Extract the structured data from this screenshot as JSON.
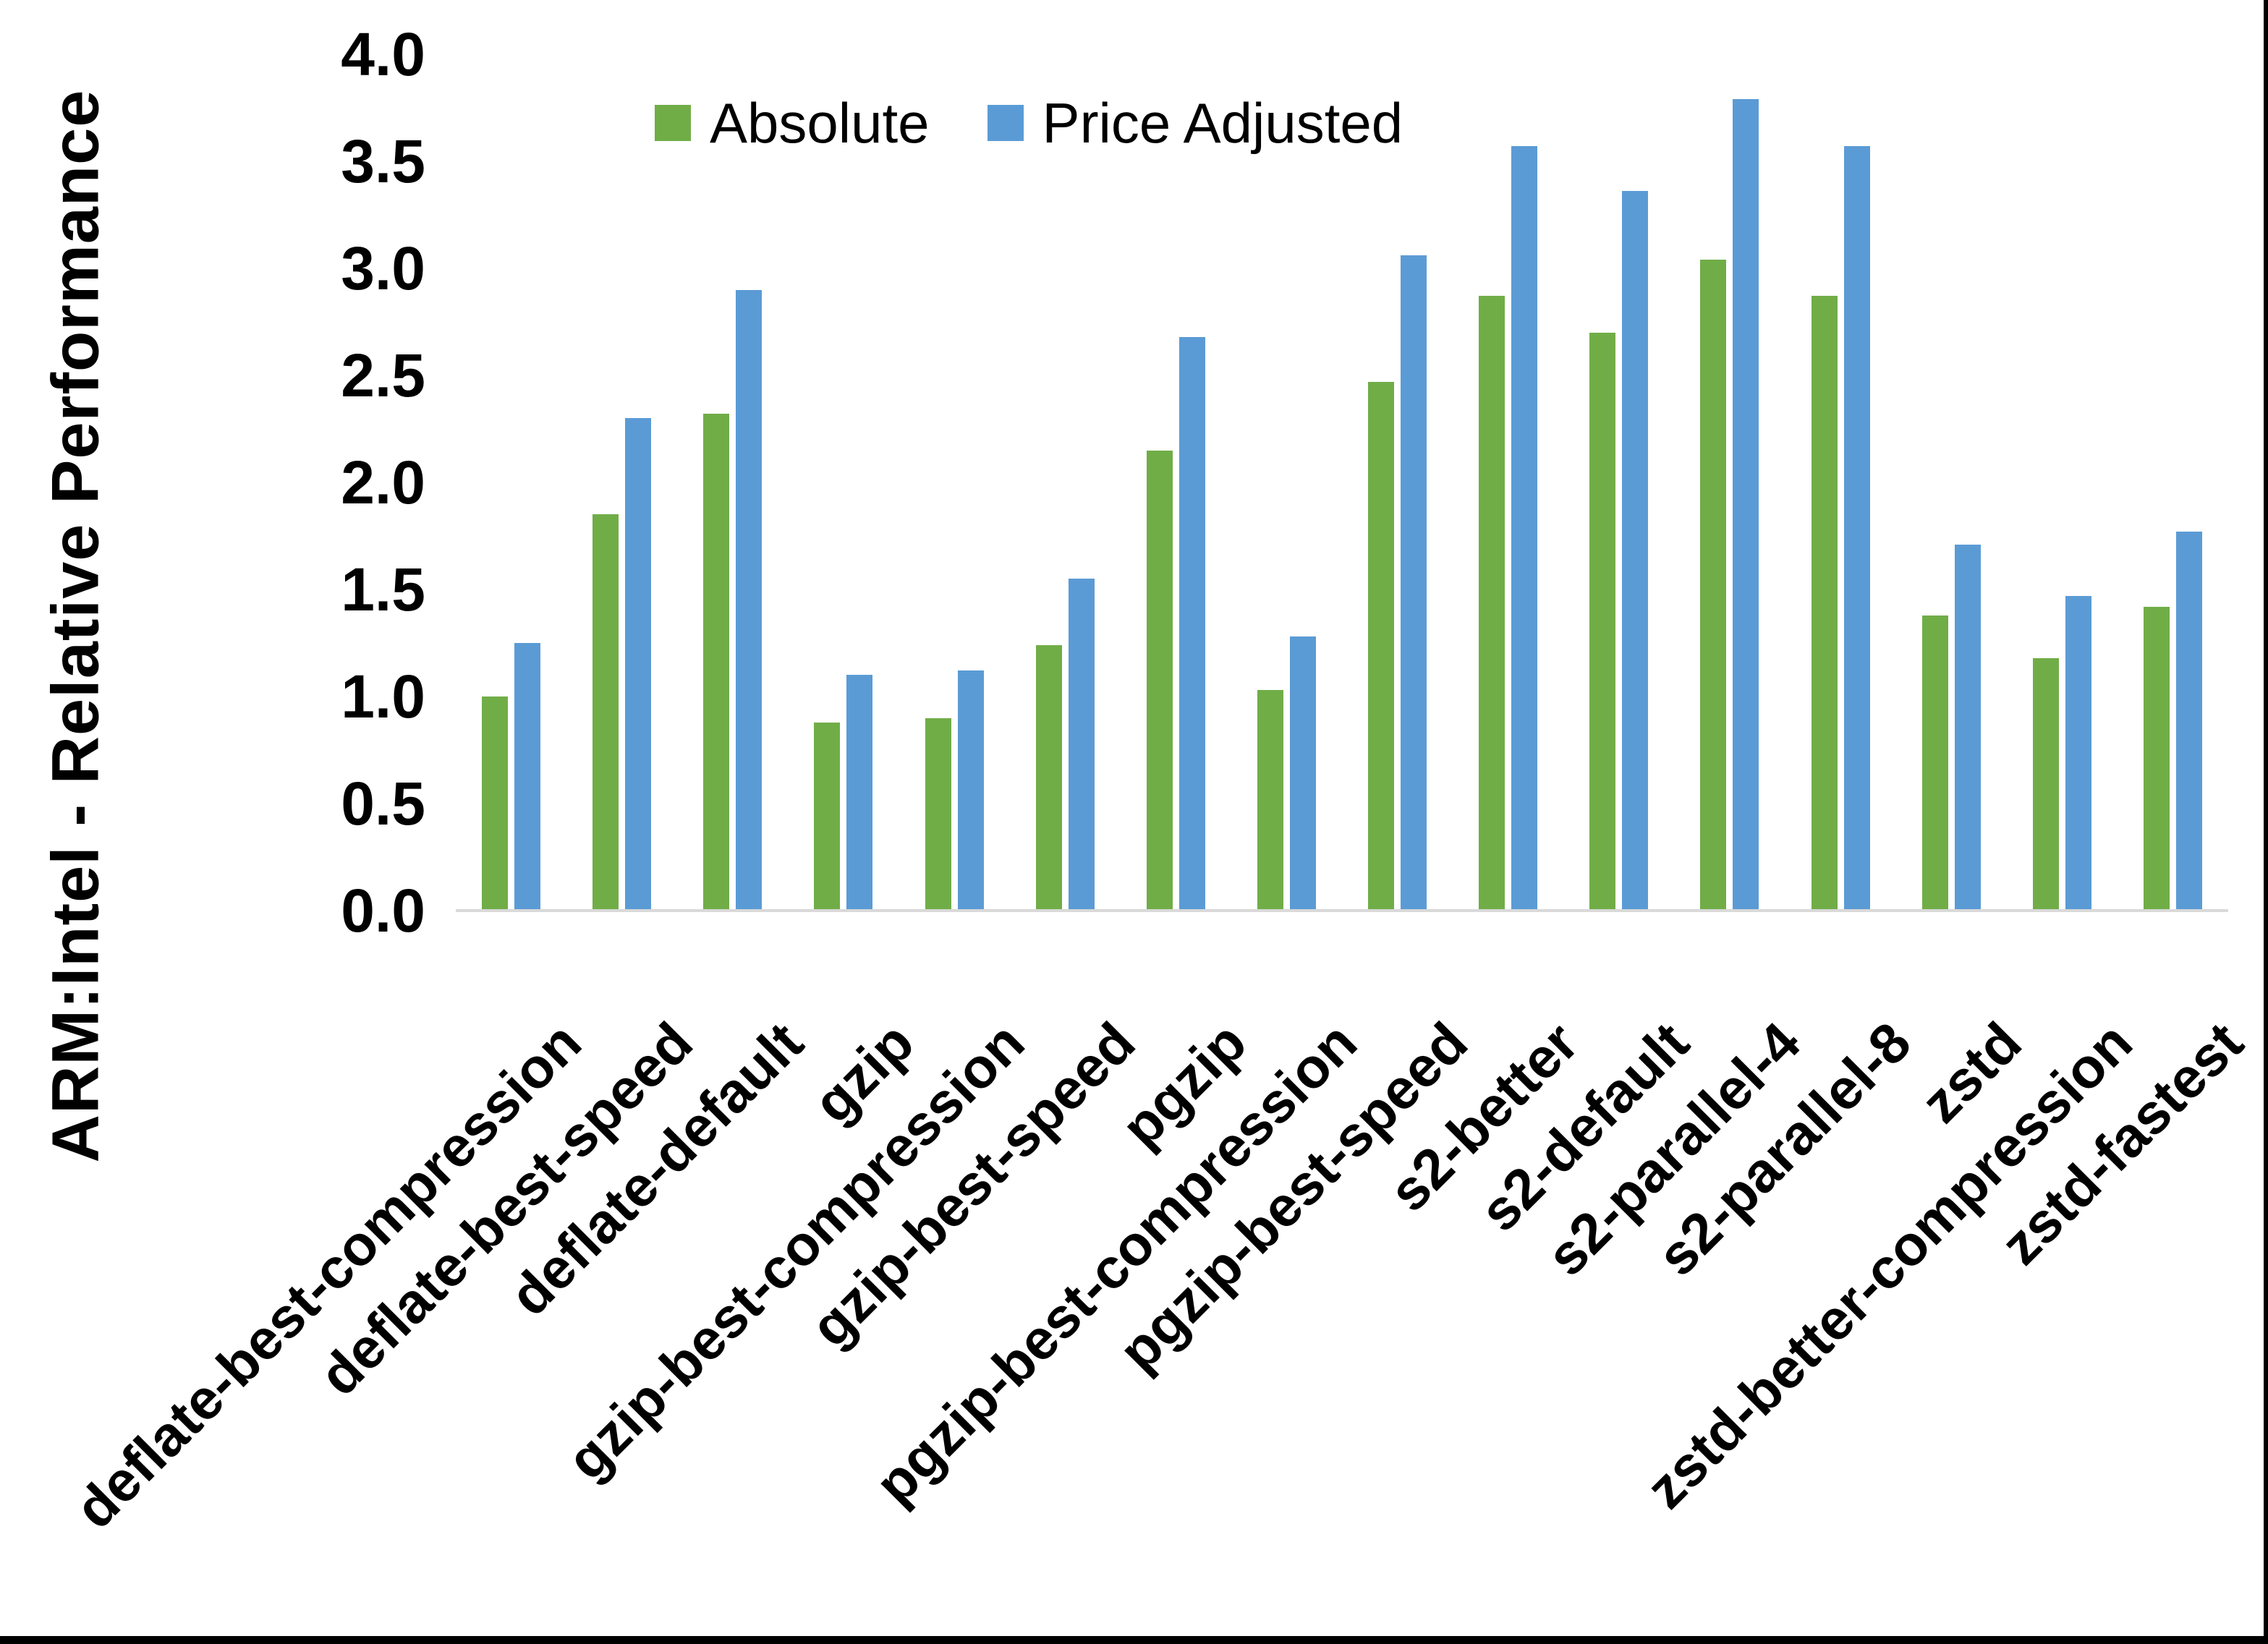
{
  "chart_data": {
    "type": "bar",
    "title": "",
    "xlabel": "",
    "ylabel": "ARM:Intel - Relative Performance",
    "ylim": [
      0,
      4
    ],
    "ytick_step": 0.5,
    "grid": false,
    "legend_position": "top-center",
    "categories": [
      "deflate-best-compression",
      "deflate-best-speed",
      "deflate-default",
      "gzip",
      "gzip-best-compression",
      "gzip-best-speed",
      "pgzip",
      "pgzip-best-compression",
      "pgzip-best-speed",
      "s2-better",
      "s2-default",
      "s2-parallel-4",
      "s2-parallel-8",
      "zstd",
      "zstd-better-compression",
      "zstd-fastest"
    ],
    "series": [
      {
        "name": "Absolute",
        "color": "#70AD47",
        "values": [
          1.0,
          1.85,
          2.32,
          0.88,
          0.9,
          1.24,
          2.15,
          1.03,
          2.47,
          2.87,
          2.7,
          3.04,
          2.87,
          1.38,
          1.18,
          1.42
        ]
      },
      {
        "name": "Price Adjusted",
        "color": "#5B9BD5",
        "values": [
          1.25,
          2.3,
          2.9,
          1.1,
          1.12,
          1.55,
          2.68,
          1.28,
          3.06,
          3.57,
          3.36,
          3.79,
          3.57,
          1.71,
          1.47,
          1.77
        ]
      }
    ]
  },
  "y_axis": {
    "tick_labels": [
      "0.0",
      "0.5",
      "1.0",
      "1.5",
      "2.0",
      "2.5",
      "3.0",
      "3.5",
      "4.0"
    ]
  },
  "colors": {
    "background": "#FFFFFF",
    "text": "#000000",
    "axis_line": "#D9D9D9",
    "border": "#000000",
    "absolute_series": "#70AD47",
    "price_adjusted_series": "#5B9BD5"
  }
}
